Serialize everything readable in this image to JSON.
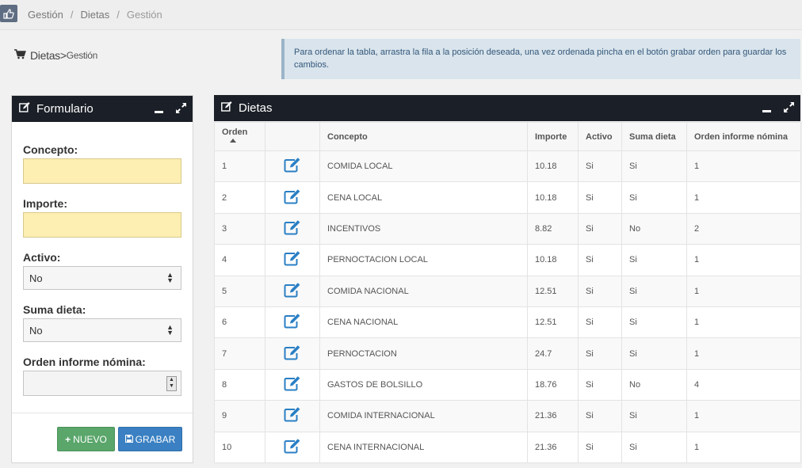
{
  "breadcrumb": {
    "items": [
      "Gestión",
      "Dietas",
      "Gestión"
    ],
    "separator": "/"
  },
  "page_header": {
    "title": "Dietas",
    "arrow": ">",
    "subtitle": "Gestión"
  },
  "info_message": "Para ordenar la tabla, arrastra la fila a la posición deseada, una vez ordenada pincha en el botón grabar orden para guardar los cambios.",
  "form": {
    "title": "Formulario",
    "concepto_label": "Concepto:",
    "concepto_value": "",
    "importe_label": "Importe:",
    "importe_value": "",
    "activo_label": "Activo:",
    "activo_value": "No",
    "suma_label": "Suma dieta:",
    "suma_value": "No",
    "orden_label": "Orden informe nómina:",
    "orden_value": "",
    "new_button": "NUEVO",
    "save_button": "GRABAR"
  },
  "table": {
    "title": "Dietas",
    "columns": [
      "Orden",
      "",
      "Concepto",
      "Importe",
      "Activo",
      "Suma dieta",
      "Orden informe nómina"
    ],
    "rows": [
      {
        "orden": "1",
        "concepto": "COMIDA LOCAL",
        "importe": "10.18",
        "activo": "Si",
        "suma": "Si",
        "informe": "1"
      },
      {
        "orden": "2",
        "concepto": "CENA LOCAL",
        "importe": "10.18",
        "activo": "Si",
        "suma": "Si",
        "informe": "1"
      },
      {
        "orden": "3",
        "concepto": "INCENTIVOS",
        "importe": "8.82",
        "activo": "Si",
        "suma": "No",
        "informe": "2"
      },
      {
        "orden": "4",
        "concepto": "PERNOCTACION LOCAL",
        "importe": "10.18",
        "activo": "Si",
        "suma": "Si",
        "informe": "1"
      },
      {
        "orden": "5",
        "concepto": "COMIDA NACIONAL",
        "importe": "12.51",
        "activo": "Si",
        "suma": "Si",
        "informe": "1"
      },
      {
        "orden": "6",
        "concepto": "CENA NACIONAL",
        "importe": "12.51",
        "activo": "Si",
        "suma": "Si",
        "informe": "1"
      },
      {
        "orden": "7",
        "concepto": "PERNOCTACION",
        "importe": "24.7",
        "activo": "Si",
        "suma": "Si",
        "informe": "1"
      },
      {
        "orden": "8",
        "concepto": "GASTOS DE BOLSILLO",
        "importe": "18.76",
        "activo": "Si",
        "suma": "No",
        "informe": "4"
      },
      {
        "orden": "9",
        "concepto": "COMIDA INTERNACIONAL",
        "importe": "21.36",
        "activo": "Si",
        "suma": "Si",
        "informe": "1"
      },
      {
        "orden": "10",
        "concepto": "CENA INTERNACIONAL",
        "importe": "21.36",
        "activo": "Si",
        "suma": "Si",
        "informe": "1"
      }
    ]
  },
  "colors": {
    "portlet_header": "#1b1f27",
    "edit_icon": "#2a7fc4",
    "input_highlight": "#fdeeb2",
    "new_button": "#5aa66b",
    "save_button": "#3a80c2",
    "info_bg": "#d9e4ec"
  }
}
